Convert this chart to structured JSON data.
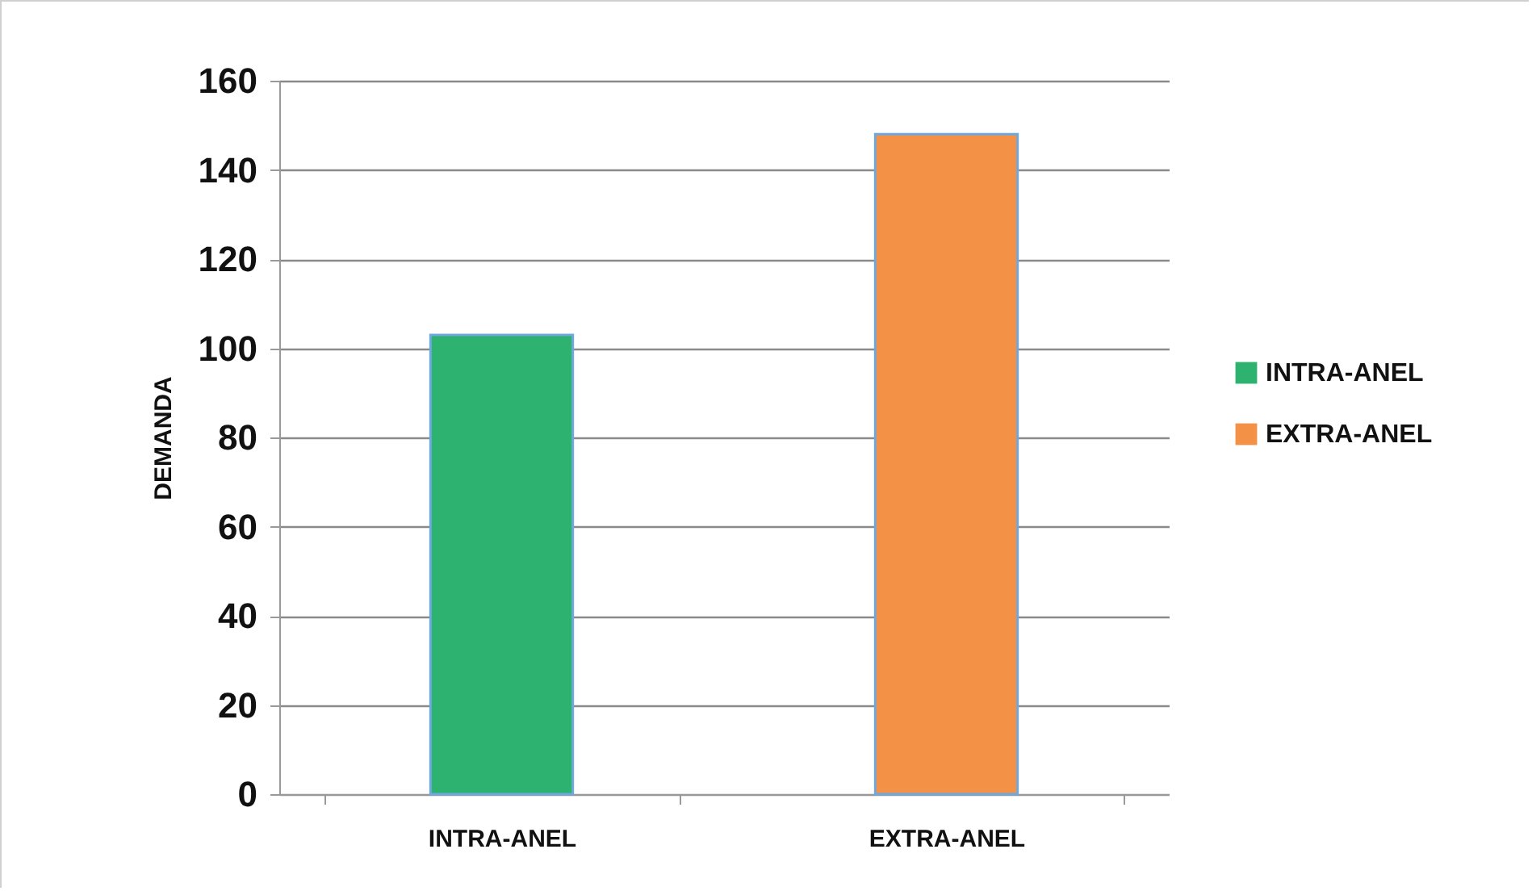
{
  "chart_data": {
    "type": "bar",
    "ylabel": "DEMANDA",
    "categories": [
      "INTRA-ANEL",
      "EXTRA-ANEL"
    ],
    "series": [
      {
        "name": "INTRA-ANEL",
        "color": "#2db36f",
        "values": [
          103,
          null
        ]
      },
      {
        "name": "EXTRA-ANEL",
        "color": "#f39147",
        "values": [
          null,
          148
        ]
      }
    ],
    "ylim": [
      0,
      160
    ],
    "yticks": [
      0,
      20,
      40,
      60,
      80,
      100,
      120,
      140,
      160
    ],
    "grid": "y",
    "legend": "right"
  }
}
